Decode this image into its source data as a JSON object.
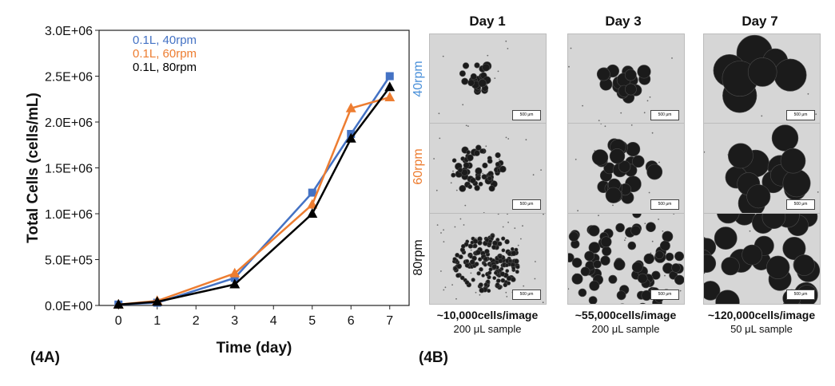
{
  "chart_data": {
    "type": "line",
    "panel_label": "(4A)",
    "xlabel": "Time (day)",
    "ylabel": "Total Cells (cells/mL)",
    "x_ticks": [
      "0",
      "1",
      "2",
      "3",
      "4",
      "5",
      "6",
      "7"
    ],
    "xlim": [
      -0.5,
      7.5
    ],
    "y_ticks": [
      "0.0E+00",
      "5.0E+05",
      "1.0E+06",
      "1.5E+06",
      "2.0E+06",
      "2.5E+06",
      "3.0E+06"
    ],
    "y_tick_values": [
      0,
      500000,
      1000000,
      1500000,
      2000000,
      2500000,
      3000000
    ],
    "ylim": [
      0,
      3000000
    ],
    "legend_position": "top-left",
    "series": [
      {
        "name": "0.1L, 40rpm",
        "color": "#4472c4",
        "marker": "square",
        "points": [
          [
            0,
            10000
          ],
          [
            1,
            30000
          ],
          [
            3,
            300000
          ],
          [
            5,
            1230000
          ],
          [
            6,
            1870000
          ],
          [
            7,
            2500000
          ]
        ]
      },
      {
        "name": "0.1L, 60rpm",
        "color": "#ed7d31",
        "marker": "triangle",
        "points": [
          [
            0,
            10000
          ],
          [
            1,
            50000
          ],
          [
            3,
            350000
          ],
          [
            5,
            1100000
          ],
          [
            6,
            2150000
          ],
          [
            7,
            2270000
          ]
        ]
      },
      {
        "name": "0.1L, 80rpm",
        "color": "#000000",
        "marker": "triangle",
        "points": [
          [
            0,
            10000
          ],
          [
            1,
            40000
          ],
          [
            3,
            230000
          ],
          [
            5,
            1000000
          ],
          [
            6,
            1820000
          ],
          [
            7,
            2380000
          ]
        ]
      }
    ]
  },
  "panel_b": {
    "label": "(4B)",
    "days": [
      "Day 1",
      "Day 3",
      "Day 7"
    ],
    "rows": [
      {
        "label": "40rpm",
        "color": "#4a90d9"
      },
      {
        "label": "60rpm",
        "color": "#ed7d31"
      },
      {
        "label": "80rpm",
        "color": "#111111"
      }
    ],
    "scale_bar": "500 μm",
    "captions": [
      {
        "count": "~10,000cells/image",
        "sample": "200 μL sample"
      },
      {
        "count": "~55,000cells/image",
        "sample": "200 μL sample"
      },
      {
        "count": "~120,000cells/image",
        "sample": "50 μL sample"
      }
    ]
  }
}
